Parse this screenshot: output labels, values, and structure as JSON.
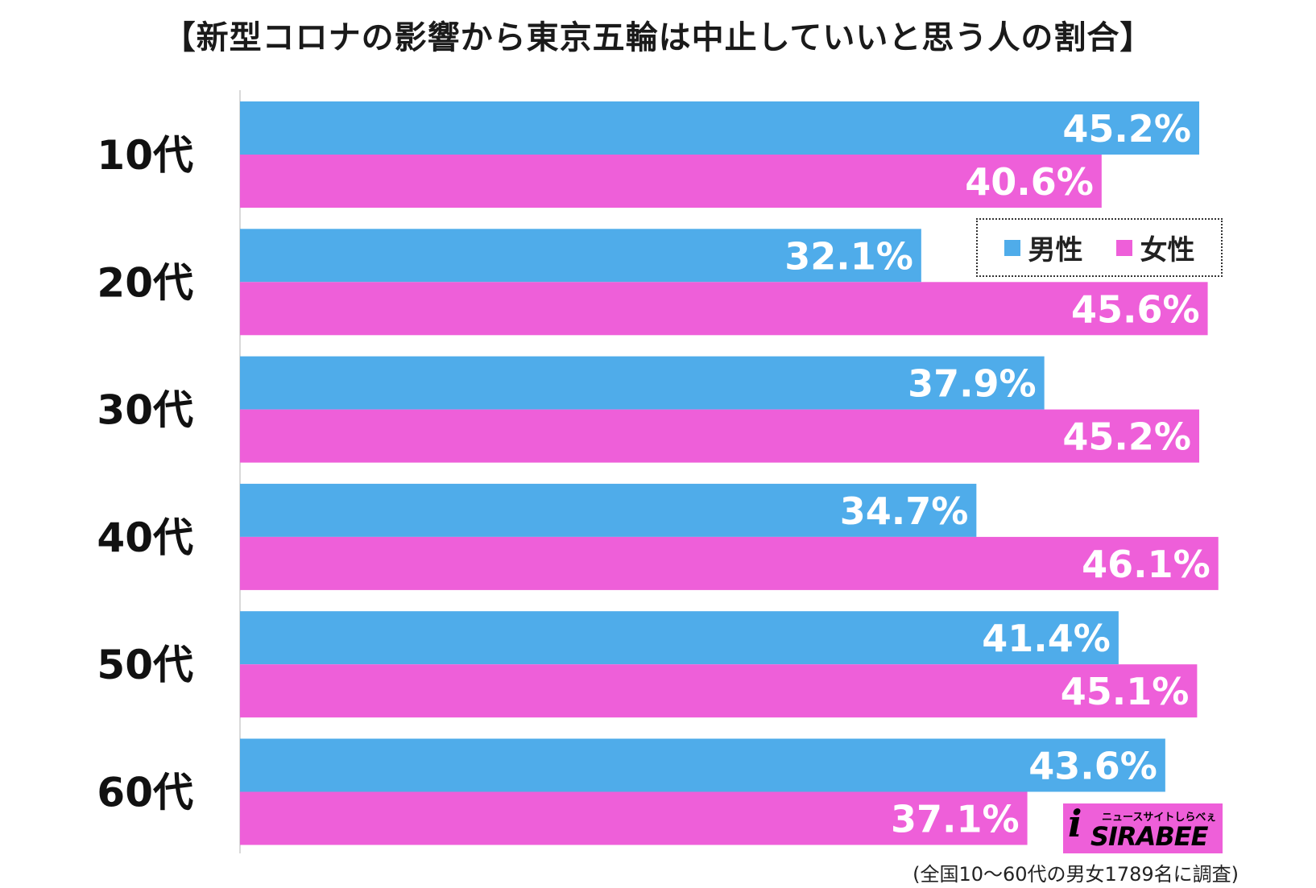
{
  "chart_data": {
    "type": "bar",
    "orientation": "horizontal",
    "title": "【新型コロナの影響から東京五輪は中止していいと思う人の割合】",
    "categories": [
      "10代",
      "20代",
      "30代",
      "40代",
      "50代",
      "60代"
    ],
    "series": [
      {
        "name": "男性",
        "color": "#4facea",
        "values": [
          45.2,
          32.1,
          37.9,
          34.7,
          41.4,
          43.6
        ]
      },
      {
        "name": "女性",
        "color": "#ee5fd9",
        "values": [
          40.6,
          45.6,
          45.2,
          46.1,
          45.1,
          37.1
        ]
      }
    ],
    "value_labels": [
      [
        "45.2%",
        "40.6%"
      ],
      [
        "32.1%",
        "45.6%"
      ],
      [
        "37.9%",
        "45.2%"
      ],
      [
        "34.7%",
        "46.1%"
      ],
      [
        "41.4%",
        "45.1%"
      ],
      [
        "43.6%",
        "37.1%"
      ]
    ],
    "xlim": [
      0,
      50
    ],
    "xlabel": "",
    "ylabel": "",
    "legend_position": "top-right",
    "grid": false
  },
  "legend": {
    "male_label": "男性",
    "female_label": "女性"
  },
  "logo": {
    "tagline": "ニュースサイトしらべぇ",
    "name": "SIRABEE",
    "mark": "i"
  },
  "source_note": "(全国10〜60代の男女1789名に調査)"
}
